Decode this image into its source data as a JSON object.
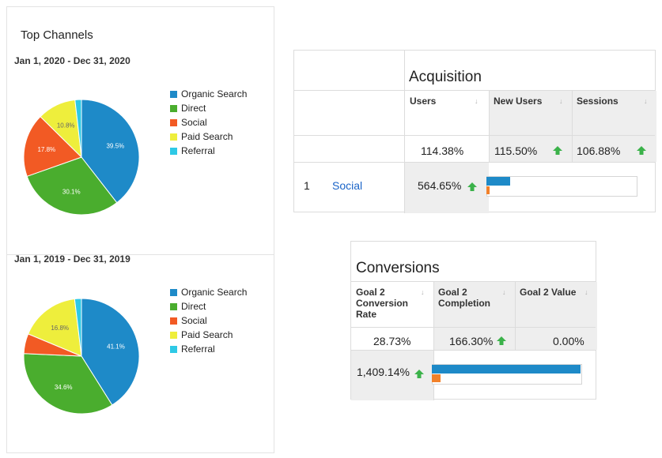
{
  "top_channels": {
    "title": "Top Channels",
    "charts": [
      {
        "date_range": "Jan 1, 2020 - Dec 31, 2020",
        "slice_labels": {
          "organic": "39.5%",
          "direct": "30.1%",
          "social": "17.8%",
          "paid": "10.8%"
        }
      },
      {
        "date_range": "Jan 1, 2019 - Dec 31, 2019",
        "slice_labels": {
          "organic": "41.1%",
          "direct": "34.6%",
          "paid": "16.8%"
        }
      }
    ],
    "legend": [
      "Organic Search",
      "Direct",
      "Social",
      "Paid Search",
      "Referral"
    ]
  },
  "chart_data": [
    {
      "type": "pie",
      "subtitle": "Jan 1, 2020 - Dec 31, 2020",
      "categories": [
        "Organic Search",
        "Direct",
        "Social",
        "Paid Search",
        "Referral"
      ],
      "values": [
        39.5,
        30.1,
        17.8,
        10.8,
        1.8
      ],
      "colors": [
        "#1e8ac8",
        "#4aad2e",
        "#f25a24",
        "#eeee3c",
        "#2ec9e6"
      ],
      "legend_position": "right"
    },
    {
      "type": "pie",
      "subtitle": "Jan 1, 2019 - Dec 31, 2019",
      "categories": [
        "Organic Search",
        "Direct",
        "Social",
        "Paid Search",
        "Referral"
      ],
      "values": [
        41.1,
        34.6,
        5.6,
        16.8,
        1.9
      ],
      "colors": [
        "#1e8ac8",
        "#4aad2e",
        "#f25a24",
        "#eeee3c",
        "#2ec9e6"
      ],
      "legend_position": "right"
    }
  ],
  "acquisition": {
    "title": "Acquisition",
    "headers": [
      "Users",
      "New Users",
      "Sessions"
    ],
    "totals": [
      "114.38%",
      "115.50%",
      "106.88%"
    ],
    "row": {
      "index": "1",
      "label": "Social",
      "users": "564.65%"
    },
    "bar": {
      "blue_fraction": 0.16,
      "orange_fraction": 0.02
    }
  },
  "conversions": {
    "title": "Conversions",
    "headers": [
      "Goal 2 Conversion Rate",
      "Goal 2 Completion",
      "Goal 2 Value"
    ],
    "totals": [
      "28.73%",
      "166.30%",
      "0.00%"
    ],
    "row": {
      "value": "1,409.14%"
    },
    "bar": {
      "blue_fraction": 1.0,
      "orange_fraction": 0.06
    }
  },
  "colors": {
    "organic": "#1e8ac8",
    "direct": "#4aad2e",
    "social": "#f25a24",
    "paid": "#eeee3c",
    "referral": "#2ec9e6",
    "up_arrow": "#3bb24a",
    "link": "#1a64c8"
  }
}
